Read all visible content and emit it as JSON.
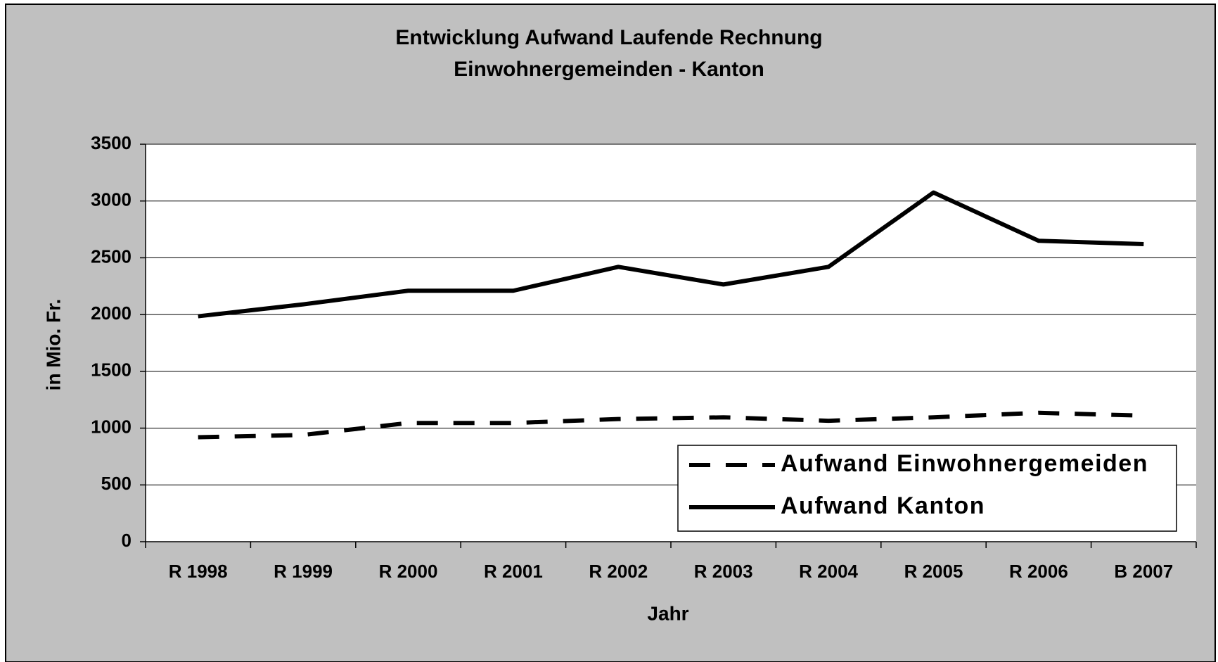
{
  "chart_data": {
    "type": "line",
    "title": "Entwicklung Aufwand Laufende Rechnung",
    "subtitle": "Einwohnergemeinden - Kanton",
    "x_label": "Jahr",
    "y_label": "in Mio. Fr.",
    "categories": [
      "R 1998",
      "R 1999",
      "R 2000",
      "R 2001",
      "R 2002",
      "R 2003",
      "R 2004",
      "R 2005",
      "R 2006",
      "B 2007"
    ],
    "series": [
      {
        "name": "Aufwand Einwohnergemeiden",
        "color": "#000000",
        "dashed": true,
        "values": [
          920,
          940,
          1045,
          1045,
          1080,
          1095,
          1065,
          1095,
          1135,
          1110
        ]
      },
      {
        "name": "Aufwand Kanton",
        "color": "#000000",
        "dashed": false,
        "values": [
          1985,
          2090,
          2210,
          2210,
          2420,
          2265,
          2420,
          3075,
          2650,
          2620
        ]
      }
    ],
    "ylim": [
      0,
      3500
    ],
    "yticks": [
      0,
      500,
      1000,
      1500,
      2000,
      2500,
      3000,
      3500
    ],
    "grid": true,
    "legend": "lower right"
  }
}
